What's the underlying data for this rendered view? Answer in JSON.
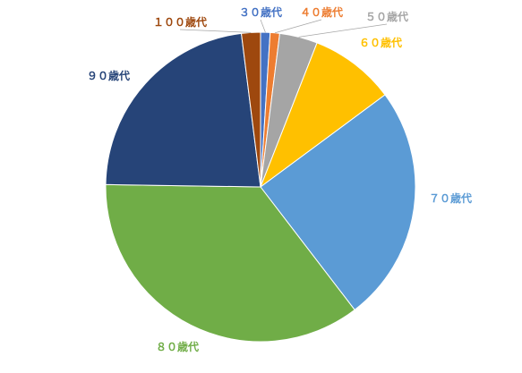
{
  "chart_data": {
    "type": "pie",
    "title": "",
    "categories": [
      "３０歳代",
      "４０歳代",
      "５０歳代",
      "６０歳代",
      "７０歳代",
      "８０歳代",
      "９０歳代",
      "１００歳代"
    ],
    "values": [
      1,
      1,
      4,
      9,
      25,
      36,
      23,
      2
    ],
    "colors": [
      "#4472c4",
      "#ed7d31",
      "#a5a5a5",
      "#ffc000",
      "#5b9bd5",
      "#70ad47",
      "#264478",
      "#9e480e"
    ],
    "label_colors": [
      "#4472c4",
      "#ed7d31",
      "#a5a5a5",
      "#ffc000",
      "#5b9bd5",
      "#70ad47",
      "#264478",
      "#9e480e"
    ],
    "start_angle_deg": 0,
    "direction": "clockwise",
    "legend": "none"
  }
}
